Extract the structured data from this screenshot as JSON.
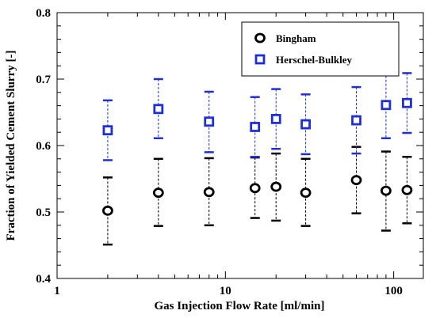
{
  "chart_data": {
    "type": "scatter",
    "xlabel": "Gas Injection Flow Rate [ml/min]",
    "ylabel": "Fraction of Yielded Cement Slurry [-]",
    "x_scale": "log",
    "xlim": [
      1,
      150
    ],
    "ylim": [
      0.4,
      0.8
    ],
    "x_ticks": [
      {
        "value": 1,
        "label": "1"
      },
      {
        "value": 10,
        "label": "10"
      },
      {
        "value": 100,
        "label": "100"
      }
    ],
    "y_ticks": [
      {
        "value": 0.4,
        "label": "0.4"
      },
      {
        "value": 0.5,
        "label": "0.5"
      },
      {
        "value": 0.6,
        "label": "0.6"
      },
      {
        "value": 0.7,
        "label": "0.7"
      },
      {
        "value": 0.8,
        "label": "0.8"
      }
    ],
    "grid": false,
    "legend_position": "top-right",
    "series": [
      {
        "name": "Bingham",
        "marker": "circle",
        "color": "#000000",
        "points": [
          {
            "x": 2,
            "y": 0.502,
            "low": 0.451,
            "high": 0.552
          },
          {
            "x": 4,
            "y": 0.529,
            "low": 0.479,
            "high": 0.58
          },
          {
            "x": 8,
            "y": 0.53,
            "low": 0.48,
            "high": 0.581
          },
          {
            "x": 15,
            "y": 0.536,
            "low": 0.491,
            "high": 0.582
          },
          {
            "x": 20,
            "y": 0.538,
            "low": 0.487,
            "high": 0.588
          },
          {
            "x": 30,
            "y": 0.529,
            "low": 0.479,
            "high": 0.58
          },
          {
            "x": 60,
            "y": 0.548,
            "low": 0.498,
            "high": 0.598
          },
          {
            "x": 90,
            "y": 0.532,
            "low": 0.472,
            "high": 0.591
          },
          {
            "x": 120,
            "y": 0.533,
            "low": 0.483,
            "high": 0.583
          }
        ]
      },
      {
        "name": "Herschel-Bulkley",
        "marker": "square",
        "color": "#1f2fd6",
        "points": [
          {
            "x": 2,
            "y": 0.623,
            "low": 0.578,
            "high": 0.668
          },
          {
            "x": 4,
            "y": 0.655,
            "low": 0.611,
            "high": 0.7
          },
          {
            "x": 8,
            "y": 0.636,
            "low": 0.59,
            "high": 0.681
          },
          {
            "x": 15,
            "y": 0.628,
            "low": 0.583,
            "high": 0.673
          },
          {
            "x": 20,
            "y": 0.64,
            "low": 0.595,
            "high": 0.685
          },
          {
            "x": 30,
            "y": 0.632,
            "low": 0.587,
            "high": 0.677
          },
          {
            "x": 60,
            "y": 0.638,
            "low": 0.588,
            "high": 0.688
          },
          {
            "x": 90,
            "y": 0.661,
            "low": 0.611,
            "high": 0.711
          },
          {
            "x": 120,
            "y": 0.664,
            "low": 0.619,
            "high": 0.709
          }
        ]
      }
    ]
  }
}
